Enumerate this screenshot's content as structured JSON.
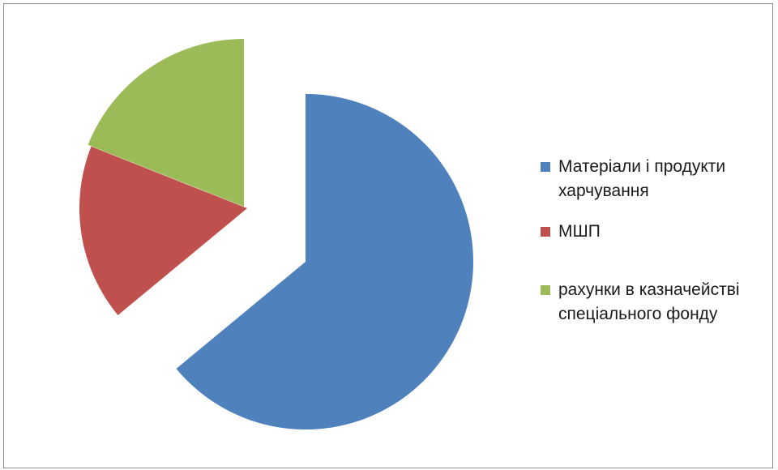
{
  "chart_data": {
    "type": "pie",
    "exploded": true,
    "categories": [
      "Матеріали і продукти харчування",
      "МШП",
      "рахунки в казначействі спеціального фонду"
    ],
    "values": [
      64,
      17,
      19
    ],
    "colors": [
      "#4f81bd",
      "#c0504d",
      "#9bbb59"
    ],
    "legend": [
      "Матеріали і продукти харчування",
      "МШП",
      "рахунки в казначействі спеціального фонду"
    ],
    "legend_position": "right",
    "title": ""
  }
}
